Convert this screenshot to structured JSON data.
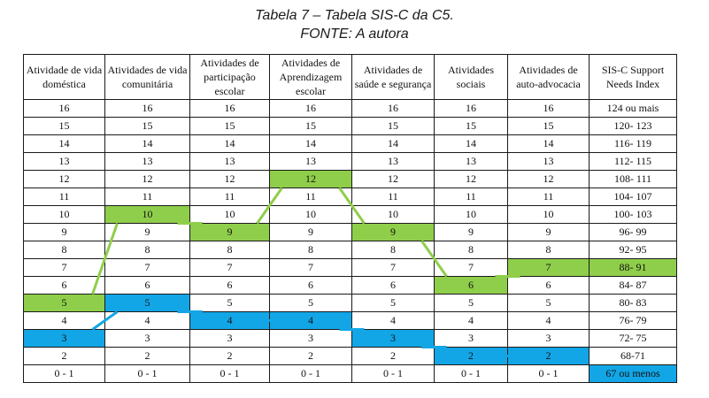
{
  "caption": {
    "title": "Tabela 7 – Tabela SIS-C da C5.",
    "source": "FONTE: A autora"
  },
  "table": {
    "headers": [
      "Atividade de vida doméstica",
      "Atividades de vida comunitária",
      "Atividades de participação escolar",
      "Atividades de Aprendizagem escolar",
      "Atividades de saúde e segurança",
      "Atividades sociais",
      "Atividades de auto-advocacia",
      "SIS-C Support Needs Index"
    ],
    "rows": [
      [
        "16",
        "16",
        "16",
        "16",
        "16",
        "16",
        "16",
        "124 ou mais"
      ],
      [
        "15",
        "15",
        "15",
        "15",
        "15",
        "15",
        "15",
        "120- 123"
      ],
      [
        "14",
        "14",
        "14",
        "14",
        "14",
        "14",
        "14",
        "116- 119"
      ],
      [
        "13",
        "13",
        "13",
        "13",
        "13",
        "13",
        "13",
        "112- 115"
      ],
      [
        "12",
        "12",
        "12",
        "12",
        "12",
        "12",
        "12",
        "108- 111"
      ],
      [
        "11",
        "11",
        "11",
        "11",
        "11",
        "11",
        "11",
        "104- 107"
      ],
      [
        "10",
        "10",
        "10",
        "10",
        "10",
        "10",
        "10",
        "100- 103"
      ],
      [
        "9",
        "9",
        "9",
        "9",
        "9",
        "9",
        "9",
        "96- 99"
      ],
      [
        "8",
        "8",
        "8",
        "8",
        "8",
        "8",
        "8",
        "92- 95"
      ],
      [
        "7",
        "7",
        "7",
        "7",
        "7",
        "7",
        "7",
        "88- 91"
      ],
      [
        "6",
        "6",
        "6",
        "6",
        "6",
        "6",
        "6",
        "84- 87"
      ],
      [
        "5",
        "5",
        "5",
        "5",
        "5",
        "5",
        "5",
        "80- 83"
      ],
      [
        "4",
        "4",
        "4",
        "4",
        "4",
        "4",
        "4",
        "76- 79"
      ],
      [
        "3",
        "3",
        "3",
        "3",
        "3",
        "3",
        "3",
        "72- 75"
      ],
      [
        "2",
        "2",
        "2",
        "2",
        "2",
        "2",
        "2",
        "68-71"
      ],
      [
        "0 - 1",
        "0 - 1",
        "0 - 1",
        "0 - 1",
        "0 - 1",
        "0 - 1",
        "0 - 1",
        "67 ou menos"
      ]
    ],
    "highlight_colors": {
      "green": "#8fce4a",
      "blue": "#12a6e6"
    },
    "green_profile": [
      "5",
      "10",
      "9",
      "12",
      "9",
      "6",
      "7",
      "88- 91"
    ],
    "blue_profile": [
      "3",
      "5",
      "4",
      "4",
      "3",
      "2",
      "2",
      "67 ou menos"
    ]
  }
}
